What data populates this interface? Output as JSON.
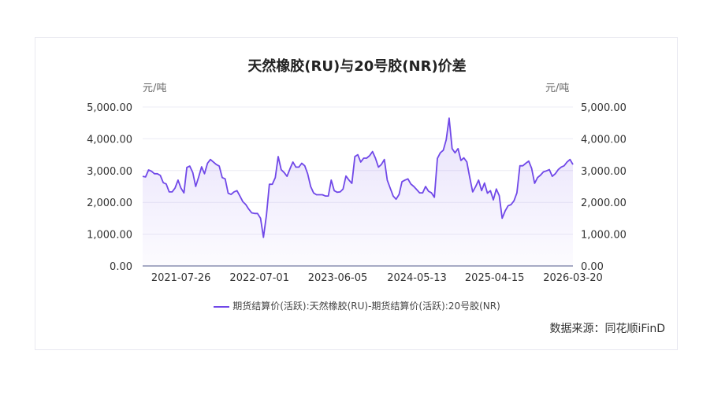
{
  "chart_data": {
    "type": "area",
    "title": "天然橡胶(RU)与20号胶(NR)价差",
    "y_unit_left": "元/吨",
    "y_unit_right": "元/吨",
    "ylim": [
      0,
      5000
    ],
    "yticks": [
      "0.00",
      "1,000.00",
      "2,000.00",
      "3,000.00",
      "4,000.00",
      "5,000.00"
    ],
    "x_range": [
      "2021-02-10",
      "2026-03-20"
    ],
    "xticks": [
      "2021-07-26",
      "2022-07-01",
      "2023-06-05",
      "2024-05-13",
      "2025-04-15",
      "2026-03-20"
    ],
    "grid": true,
    "legend_position": "bottom",
    "color": "#7048e8",
    "series": [
      {
        "name": "期货结算价(活跃):天然橡胶(RU)-期货结算价(活跃):20号胶(NR)",
        "values": [
          2820,
          2800,
          3020,
          2980,
          2900,
          2900,
          2850,
          2620,
          2580,
          2330,
          2330,
          2450,
          2700,
          2450,
          2300,
          3100,
          3140,
          2940,
          2500,
          2800,
          3120,
          2900,
          3230,
          3350,
          3270,
          3190,
          3140,
          2780,
          2740,
          2290,
          2250,
          2330,
          2370,
          2200,
          2020,
          1930,
          1790,
          1670,
          1650,
          1650,
          1500,
          900,
          1600,
          2570,
          2570,
          2780,
          3440,
          3030,
          2940,
          2820,
          3060,
          3270,
          3110,
          3110,
          3230,
          3150,
          2900,
          2500,
          2300,
          2240,
          2240,
          2240,
          2200,
          2200,
          2700,
          2370,
          2320,
          2330,
          2420,
          2830,
          2700,
          2600,
          3440,
          3500,
          3270,
          3390,
          3390,
          3470,
          3600,
          3390,
          3110,
          3190,
          3350,
          2700,
          2450,
          2200,
          2100,
          2250,
          2650,
          2700,
          2740,
          2580,
          2500,
          2400,
          2300,
          2300,
          2500,
          2350,
          2300,
          2160,
          3380,
          3560,
          3640,
          3970,
          4650,
          3690,
          3560,
          3690,
          3320,
          3400,
          3270,
          2780,
          2330,
          2500,
          2700,
          2370,
          2610,
          2290,
          2370,
          2080,
          2420,
          2210,
          1500,
          1730,
          1890,
          1930,
          2050,
          2300,
          3150,
          3150,
          3230,
          3300,
          3070,
          2600,
          2780,
          2860,
          2960,
          2990,
          3030,
          2820,
          2900,
          3030,
          3110,
          3150,
          3270,
          3350,
          3190
        ]
      }
    ]
  },
  "source": "数据来源：同花顺iFinD"
}
